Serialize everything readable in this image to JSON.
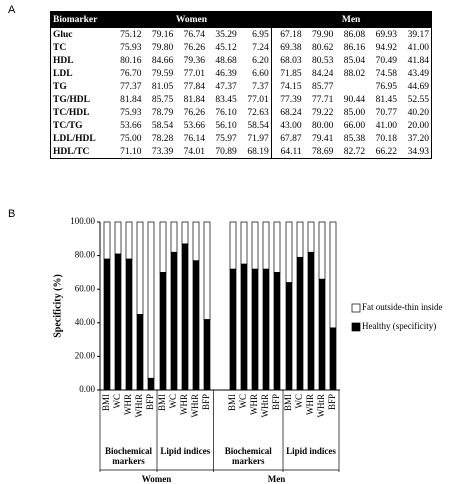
{
  "panel_a": {
    "label": "A"
  },
  "table": {
    "header": [
      "Biomarker",
      "Women",
      "Men"
    ],
    "rows": [
      {
        "label": "Gluc",
        "values": [
          "75.12",
          "79.16",
          "76.74",
          "35.29",
          "6.95",
          "67.18",
          "79.90",
          "86.08",
          "69.93",
          "39.17"
        ]
      },
      {
        "label": "TC",
        "values": [
          "75.93",
          "79.80",
          "76.26",
          "45.12",
          "7.24",
          "69.38",
          "80.62",
          "86.16",
          "94.92",
          "41.00"
        ]
      },
      {
        "label": "HDL",
        "values": [
          "80.16",
          "84.66",
          "79.36",
          "48.68",
          "6.20",
          "68.03",
          "80.53",
          "85.04",
          "70.49",
          "41.84"
        ]
      },
      {
        "label": "LDL",
        "values": [
          "76.70",
          "79.59",
          "77.01",
          "46.39",
          "6.60",
          "71.85",
          "84.24",
          "88.02",
          "74.58",
          "43.49"
        ]
      },
      {
        "label": "TG",
        "values": [
          "77.37",
          "81.05",
          "77.84",
          "47.37",
          "7.37",
          "74.15",
          "85.77",
          null,
          "76.95",
          "44.69"
        ]
      },
      {
        "label": "TG/HDL",
        "values": [
          "81.84",
          "85.75",
          "81.84",
          "83.45",
          "77.01",
          "77.39",
          "77.71",
          "90.44",
          "81.45",
          "52.55"
        ]
      },
      {
        "label": "TC/HDL",
        "values": [
          "75.93",
          "78.79",
          "76.26",
          "76.10",
          "72.63",
          "68.24",
          "79.22",
          "85.00",
          "70.77",
          "40.20"
        ]
      },
      {
        "label": "TC/TG",
        "values": [
          "53.66",
          "58.54",
          "53.66",
          "56.10",
          "58.54",
          "43.00",
          "80.00",
          "66.00",
          "41.00",
          "20.00"
        ]
      },
      {
        "label": "LDL/HDL",
        "values": [
          "75.00",
          "78.28",
          "76.14",
          "75.97",
          "71.97",
          "67.87",
          "79.41",
          "85.38",
          "70.18",
          "37.20"
        ]
      },
      {
        "label": "HDL/TC",
        "values": [
          "71.10",
          "73.39",
          "74.01",
          "70.89",
          "68.19",
          "64.11",
          "78.69",
          "82.72",
          "66.22",
          "34.93"
        ]
      }
    ]
  },
  "panel_b": {
    "label": "B"
  },
  "chart_data": {
    "type": "bar",
    "stacked": true,
    "ylabel": "Specificity (%)",
    "categories": [
      "BMI",
      "WC",
      "WHR",
      "WHtR",
      "BFP",
      "BMI",
      "WC",
      "WHR",
      "WHtR",
      "BFP",
      "BMI",
      "WC",
      "WHR",
      "WHtR",
      "BFP",
      "BMI",
      "WC",
      "WHR",
      "WHtR",
      "BFP"
    ],
    "subgroups": [
      "Biochemical markers",
      "Lipid indices",
      "Biochemical markers",
      "Lipid indices"
    ],
    "groups": [
      "Women",
      "Men"
    ],
    "series": [
      {
        "name": "Healthy (specificity)",
        "color": "#000000",
        "values": [
          78,
          81,
          78,
          45,
          7,
          70,
          82,
          87,
          77,
          42,
          72,
          75,
          72,
          72,
          70,
          64,
          79,
          82,
          66,
          37
        ]
      },
      {
        "name": "Fat outside-thin inside",
        "color": "#ffffff",
        "values": [
          22,
          19,
          22,
          55,
          93,
          30,
          18,
          13,
          23,
          58,
          28,
          25,
          28,
          28,
          30,
          36,
          21,
          18,
          34,
          63
        ]
      }
    ],
    "ylim": [
      0,
      100
    ],
    "yticks": [
      {
        "value": 0,
        "label": "0.00"
      },
      {
        "value": 20,
        "label": "20.00"
      },
      {
        "value": 40,
        "label": "40.00"
      },
      {
        "value": 60,
        "label": "60.00"
      },
      {
        "value": 80,
        "label": "80.00"
      },
      {
        "value": 100,
        "label": "100.00"
      }
    ],
    "legend": "right"
  }
}
